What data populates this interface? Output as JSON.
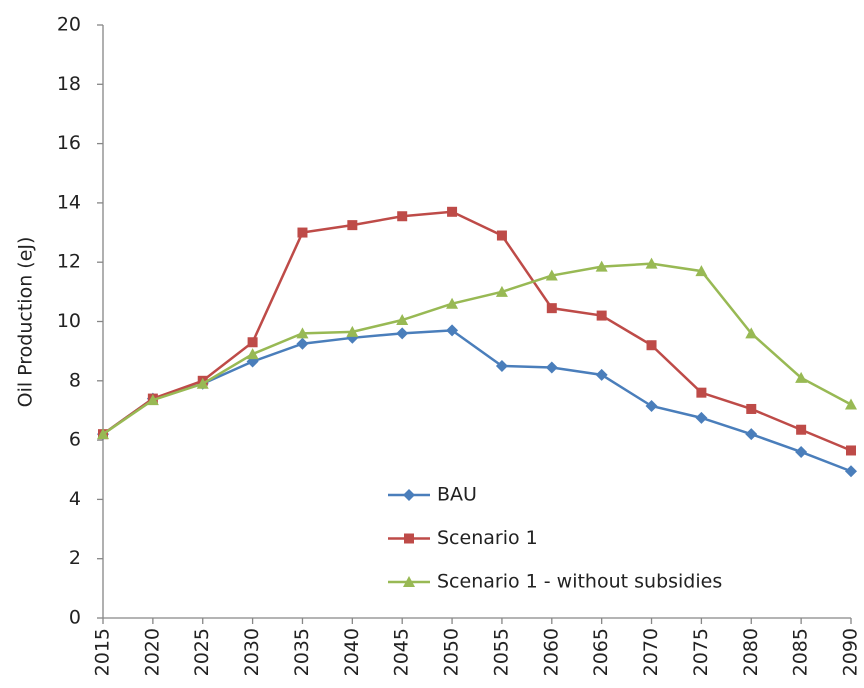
{
  "chart_data": {
    "type": "line",
    "y_label": "Oil Production (eJ)",
    "categories": [
      "2015",
      "2020",
      "2025",
      "2030",
      "2035",
      "2040",
      "2045",
      "2050",
      "2055",
      "2060",
      "2065",
      "2070",
      "2075",
      "2080",
      "2085",
      "2090"
    ],
    "series": [
      {
        "name": "BAU",
        "color": "#4a7ebb",
        "values": [
          6.2,
          7.4,
          7.9,
          8.65,
          9.25,
          9.45,
          9.6,
          9.7,
          8.5,
          8.45,
          8.2,
          7.15,
          6.75,
          6.2,
          5.6,
          4.95
        ]
      },
      {
        "name": "Scenario 1",
        "color": "#be4b48",
        "values": [
          6.2,
          7.4,
          8.0,
          9.3,
          13.0,
          13.25,
          13.55,
          13.7,
          12.9,
          10.45,
          10.2,
          9.2,
          7.6,
          7.05,
          6.35,
          5.65
        ]
      },
      {
        "name": "Scenario 1 - without subsidies",
        "color": "#98b954",
        "values": [
          6.2,
          7.35,
          7.9,
          8.9,
          9.6,
          9.65,
          10.05,
          10.6,
          11.0,
          11.55,
          11.85,
          11.95,
          11.7,
          9.6,
          8.1,
          7.2
        ]
      }
    ],
    "ylim": [
      0,
      20
    ],
    "yticks": [
      0,
      2,
      4,
      6,
      8,
      10,
      12,
      14,
      16,
      18,
      20
    ],
    "grid": false,
    "legend": "lower right"
  }
}
